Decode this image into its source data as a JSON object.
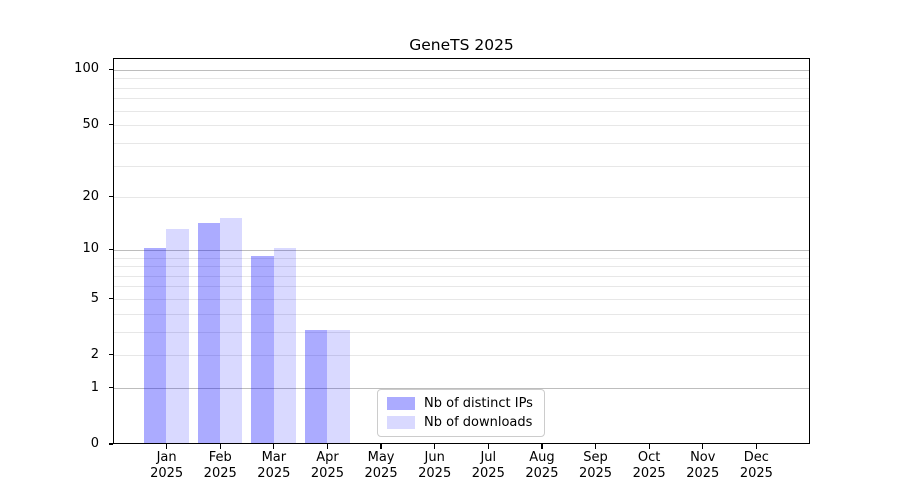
{
  "chart_data": {
    "type": "bar",
    "title": "GeneTS 2025",
    "categories": [
      "Jan 2025",
      "Feb 2025",
      "Mar 2025",
      "Apr 2025",
      "May 2025",
      "Jun 2025",
      "Jul 2025",
      "Aug 2025",
      "Sep 2025",
      "Oct 2025",
      "Nov 2025",
      "Dec 2025"
    ],
    "series": [
      {
        "name": "Nb of distinct IPs",
        "color": "rgba(0,0,255,0.33)",
        "values": [
          10,
          14,
          9,
          3,
          0,
          0,
          0,
          0,
          0,
          0,
          0,
          0
        ]
      },
      {
        "name": "Nb of downloads",
        "color": "rgba(0,0,255,0.15)",
        "values": [
          13,
          15,
          10,
          3,
          0,
          0,
          0,
          0,
          0,
          0,
          0,
          0
        ]
      }
    ],
    "yscale": "log1p",
    "ylim": [
      0,
      115
    ],
    "yticks": [
      0,
      1,
      2,
      5,
      10,
      20,
      50,
      100
    ],
    "gridlines_major": [
      1,
      10,
      100
    ],
    "gridlines_minor": [
      2,
      3,
      4,
      5,
      6,
      7,
      8,
      9,
      20,
      30,
      40,
      50,
      60,
      70,
      80,
      90
    ],
    "grid_on": true,
    "legend_position": "lower center",
    "colors": {
      "grid_major": "#bdbdbd",
      "grid_minor": "#e7e7e7",
      "spine": "#000000",
      "legend_border": "#cccccc"
    }
  }
}
